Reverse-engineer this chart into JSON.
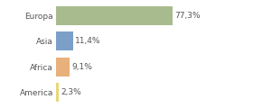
{
  "categories": [
    "Europa",
    "Asia",
    "Africa",
    "America"
  ],
  "values": [
    77.3,
    11.4,
    9.1,
    2.3
  ],
  "labels": [
    "77,3%",
    "11,4%",
    "9,1%",
    "2,3%"
  ],
  "bar_colors": [
    "#a8bb8f",
    "#7b9fc7",
    "#e8b07a",
    "#e8d87a"
  ],
  "background_color": "#ffffff",
  "xlim": [
    0,
    100
  ],
  "bar_height": 0.75,
  "label_fontsize": 6.5,
  "tick_fontsize": 6.5,
  "grid_xticks": [
    0,
    25,
    50,
    75,
    100
  ],
  "grid_color": "#cccccc",
  "text_color": "#555555"
}
